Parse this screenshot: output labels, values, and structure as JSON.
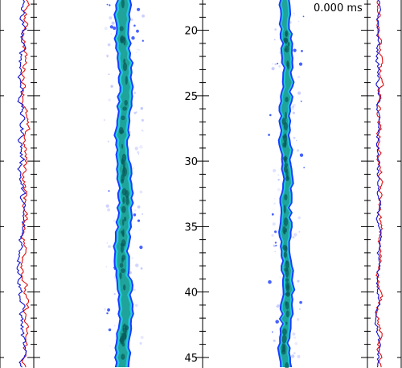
{
  "timestamp": "0.000 ms",
  "colors": {
    "trace_red": "#e01010",
    "trace_blue": "#1010d0",
    "jet_dark": "#0a5a5a",
    "jet_mid": "#1fa39a",
    "jet_light": "#22c8d8",
    "jet_edge": "#1a3cff",
    "halo": "#8890ff"
  },
  "chart_data": {
    "type": "heatmap",
    "title": "",
    "xlabel": "",
    "ylabel": "",
    "ylim": [
      17.5,
      47.5
    ],
    "yticks_major": [
      20,
      25,
      30,
      35,
      40,
      45
    ],
    "yticks_minor": [
      18,
      19,
      21,
      22,
      23,
      24,
      26,
      27,
      28,
      29,
      31,
      32,
      33,
      34,
      36,
      37,
      38,
      39,
      41,
      42,
      43,
      44,
      46,
      47
    ],
    "tick_labels": [
      "20",
      "25",
      "30",
      "35",
      "40",
      "45"
    ],
    "panels": [
      {
        "name": "left-profile",
        "series": [
          "red",
          "blue"
        ]
      },
      {
        "name": "left-jet-image"
      },
      {
        "name": "right-jet-image"
      },
      {
        "name": "right-profile",
        "series": [
          "red",
          "blue"
        ]
      }
    ]
  }
}
